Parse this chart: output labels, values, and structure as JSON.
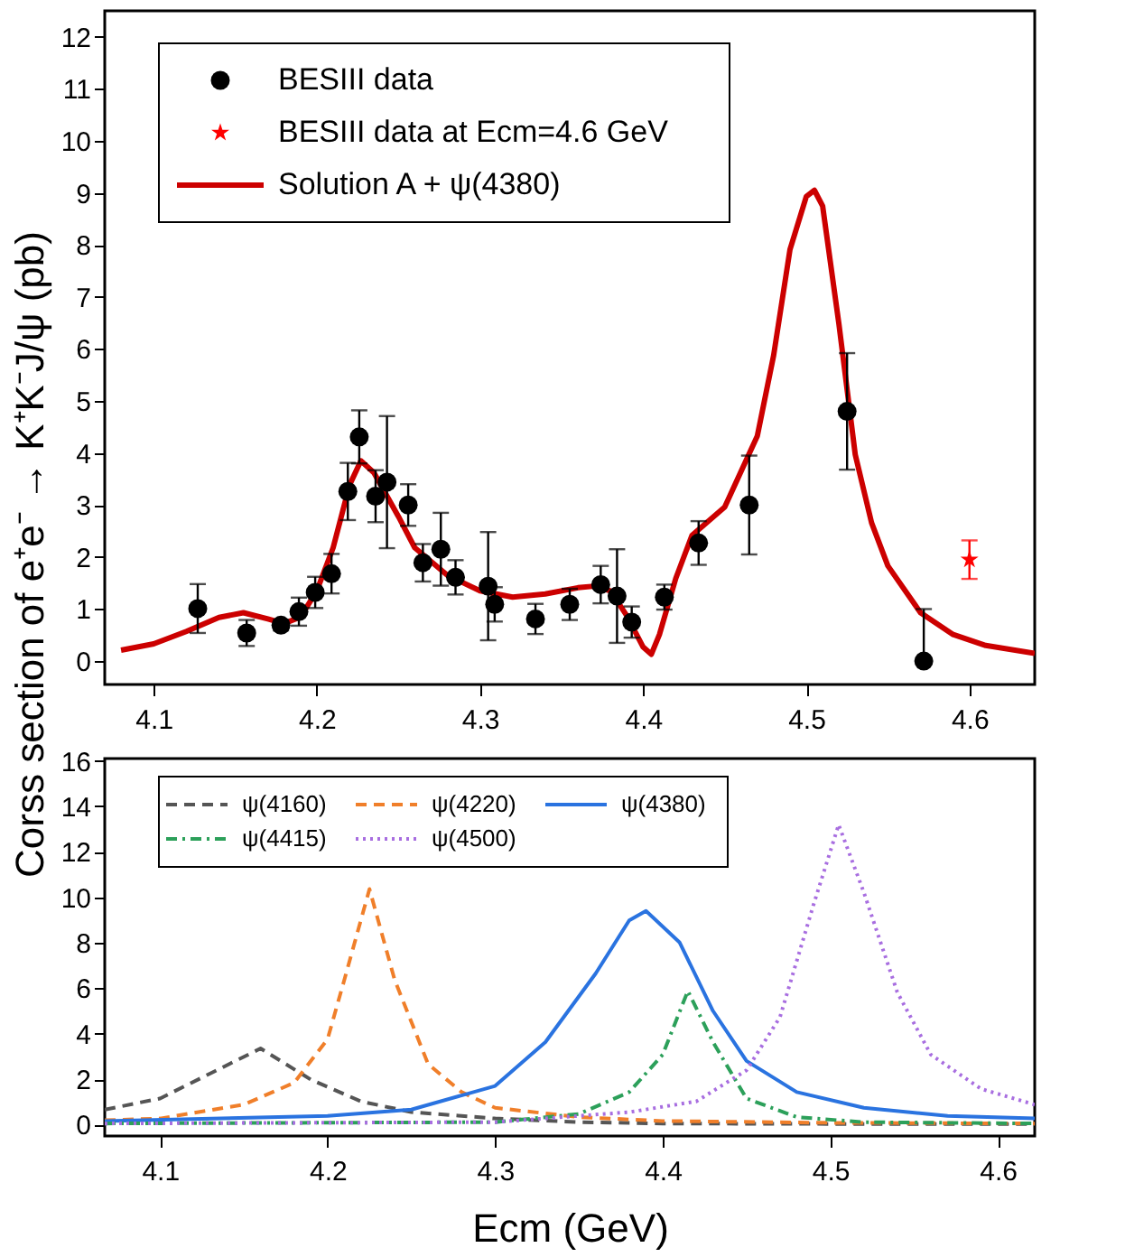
{
  "chart_data": [
    {
      "type": "scatter",
      "ylabel": "Corss section of e⁺e⁻ → K⁺K⁻J/ψ   (pb)",
      "xlim": [
        4.07,
        4.64
      ],
      "ylim": [
        -0.45,
        12.5
      ],
      "xticks": [
        4.1,
        4.2,
        4.3,
        4.4,
        4.5,
        4.6
      ],
      "yticks": [
        0,
        1,
        2,
        3,
        4,
        5,
        6,
        7,
        8,
        9,
        10,
        11,
        12
      ],
      "legend": "top left",
      "series": [
        {
          "name": "BESIII data",
          "type": "scatter",
          "marker": "circle",
          "color": "#000000",
          "x": [
            4.127,
            4.157,
            4.178,
            4.189,
            4.199,
            4.209,
            4.219,
            4.226,
            4.236,
            4.243,
            4.256,
            4.265,
            4.276,
            4.285,
            4.305,
            4.309,
            4.334,
            4.355,
            4.374,
            4.384,
            4.393,
            4.413,
            4.434,
            4.465,
            4.525,
            4.572
          ],
          "values": [
            1.01,
            0.54,
            0.69,
            0.95,
            1.32,
            1.68,
            3.26,
            4.31,
            3.17,
            3.44,
            3.0,
            1.89,
            2.15,
            1.61,
            1.44,
            1.09,
            0.81,
            1.09,
            1.47,
            1.25,
            0.75,
            1.23,
            2.27,
            3.0,
            4.8,
            0.0
          ],
          "errors": [
            0.47,
            0.25,
            0.1,
            0.27,
            0.3,
            0.38,
            0.55,
            0.51,
            0.5,
            1.27,
            0.4,
            0.36,
            0.7,
            0.33,
            1.04,
            0.33,
            0.29,
            0.3,
            0.36,
            0.9,
            0.3,
            0.24,
            0.42,
            0.95,
            1.12,
            [
              0.0,
              1.0
            ]
          ]
        },
        {
          "name": "BESIII data at Ecm=4.6 GeV",
          "type": "scatter",
          "marker": "star",
          "color": "#ff0000",
          "x": [
            4.6
          ],
          "values": [
            1.95
          ],
          "errors": [
            0.37
          ]
        },
        {
          "name": "Solution A + ψ(4380)",
          "type": "line",
          "color": "#cc0000",
          "x": [
            4.08,
            4.1,
            4.12,
            4.14,
            4.155,
            4.17,
            4.18,
            4.19,
            4.2,
            4.21,
            4.22,
            4.227,
            4.235,
            4.25,
            4.26,
            4.28,
            4.3,
            4.32,
            4.34,
            4.36,
            4.37,
            4.38,
            4.39,
            4.4,
            4.405,
            4.41,
            4.42,
            4.43,
            4.45,
            4.47,
            4.48,
            4.49,
            4.5,
            4.505,
            4.51,
            4.52,
            4.53,
            4.54,
            4.55,
            4.57,
            4.59,
            4.61,
            4.64
          ],
          "values": [
            0.21,
            0.33,
            0.57,
            0.84,
            0.93,
            0.81,
            0.72,
            0.85,
            1.35,
            2.18,
            3.38,
            3.85,
            3.62,
            2.78,
            2.18,
            1.65,
            1.35,
            1.23,
            1.29,
            1.41,
            1.44,
            1.35,
            0.87,
            0.27,
            0.13,
            0.51,
            1.59,
            2.42,
            2.96,
            4.33,
            5.88,
            7.91,
            8.93,
            9.05,
            8.75,
            6.48,
            3.97,
            2.66,
            1.83,
            0.93,
            0.51,
            0.3,
            0.15
          ]
        }
      ]
    },
    {
      "type": "line",
      "xlabel": "Ecm (GeV)",
      "xlim": [
        4.067,
        4.622
      ],
      "ylim": [
        -0.5,
        16.1
      ],
      "xticks": [
        4.1,
        4.2,
        4.3,
        4.4,
        4.5,
        4.6
      ],
      "yticks": [
        0,
        2,
        4,
        6,
        8,
        10,
        12,
        14,
        16
      ],
      "legend": "top left",
      "series": [
        {
          "name": "ψ(4160)",
          "color": "#555555",
          "line_style": "dashed",
          "x": [
            4.067,
            4.1,
            4.13,
            4.16,
            4.19,
            4.22,
            4.25,
            4.3,
            4.35,
            4.4,
            4.5,
            4.622
          ],
          "values": [
            0.66,
            1.15,
            2.25,
            3.35,
            1.98,
            1.02,
            0.55,
            0.27,
            0.11,
            0.05,
            0.03,
            0.03
          ]
        },
        {
          "name": "ψ(4220)",
          "color": "#f07f2a",
          "line_style": "dashed",
          "x": [
            4.067,
            4.1,
            4.15,
            4.18,
            4.2,
            4.21,
            4.225,
            4.24,
            4.26,
            4.28,
            4.3,
            4.35,
            4.4,
            4.5,
            4.622
          ],
          "values": [
            0.19,
            0.27,
            0.88,
            1.84,
            3.76,
            6.37,
            10.36,
            6.37,
            2.66,
            1.43,
            0.74,
            0.33,
            0.16,
            0.08,
            0.05
          ]
        },
        {
          "name": "ψ(4380)",
          "color": "#2a73e0",
          "line_style": "solid",
          "x": [
            4.067,
            4.2,
            4.25,
            4.3,
            4.33,
            4.36,
            4.38,
            4.39,
            4.41,
            4.43,
            4.45,
            4.48,
            4.52,
            4.57,
            4.622
          ],
          "values": [
            0.16,
            0.38,
            0.66,
            1.7,
            3.63,
            6.65,
            8.98,
            9.4,
            8.02,
            5.0,
            2.8,
            1.43,
            0.74,
            0.38,
            0.27
          ]
        },
        {
          "name": "ψ(4415)",
          "color": "#2ca05a",
          "line_style": "dashdot",
          "x": [
            4.067,
            4.3,
            4.35,
            4.38,
            4.4,
            4.415,
            4.43,
            4.45,
            4.48,
            4.52,
            4.622
          ],
          "values": [
            0.05,
            0.11,
            0.47,
            1.43,
            3.08,
            5.88,
            3.63,
            1.15,
            0.33,
            0.11,
            0.05
          ]
        },
        {
          "name": "ψ(4500)",
          "color": "#a86ee0",
          "line_style": "dotted",
          "x": [
            4.067,
            4.3,
            4.38,
            4.42,
            4.45,
            4.47,
            4.49,
            4.505,
            4.52,
            4.54,
            4.56,
            4.59,
            4.622
          ],
          "values": [
            0.05,
            0.11,
            0.55,
            1.02,
            2.39,
            4.73,
            9.67,
            13.19,
            10.22,
            5.82,
            3.08,
            1.57,
            0.88
          ]
        }
      ]
    }
  ]
}
